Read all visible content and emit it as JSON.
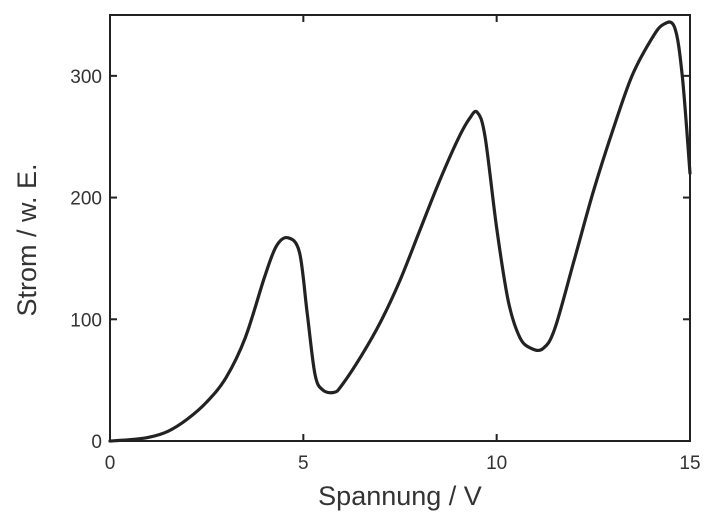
{
  "chart_data": {
    "type": "line",
    "title": "",
    "xlabel": "Spannung / V",
    "ylabel": "Strom / w. E.",
    "xlim": [
      0,
      15
    ],
    "ylim": [
      0,
      350
    ],
    "xticks": [
      0,
      5,
      10,
      15
    ],
    "xtick_labels": [
      "0",
      "5",
      "10",
      "15"
    ],
    "yticks": [
      0,
      100,
      200,
      300
    ],
    "ytick_labels": [
      "0",
      "100",
      "200",
      "300"
    ],
    "grid": false,
    "legend": "none",
    "line_color": "#222222",
    "series": [
      {
        "x": [
          0,
          0.5,
          1.0,
          1.5,
          2.0,
          2.5,
          3.0,
          3.5,
          4.0,
          4.3,
          4.6,
          4.9,
          5.1,
          5.3,
          5.5,
          5.8,
          6.0,
          6.5,
          7.0,
          7.5,
          8.0,
          8.5,
          9.0,
          9.3,
          9.5,
          9.7,
          10.0,
          10.3,
          10.6,
          10.9,
          11.2,
          11.5,
          12.0,
          12.5,
          13.0,
          13.5,
          14.0,
          14.3,
          14.6,
          14.8,
          15.0
        ],
        "values": [
          0,
          1,
          3,
          8,
          18,
          32,
          52,
          85,
          135,
          160,
          167,
          155,
          105,
          55,
          42,
          40,
          46,
          70,
          98,
          132,
          172,
          212,
          248,
          265,
          270,
          250,
          175,
          115,
          85,
          76,
          76,
          92,
          148,
          205,
          255,
          300,
          330,
          342,
          340,
          300,
          220
        ]
      }
    ]
  }
}
